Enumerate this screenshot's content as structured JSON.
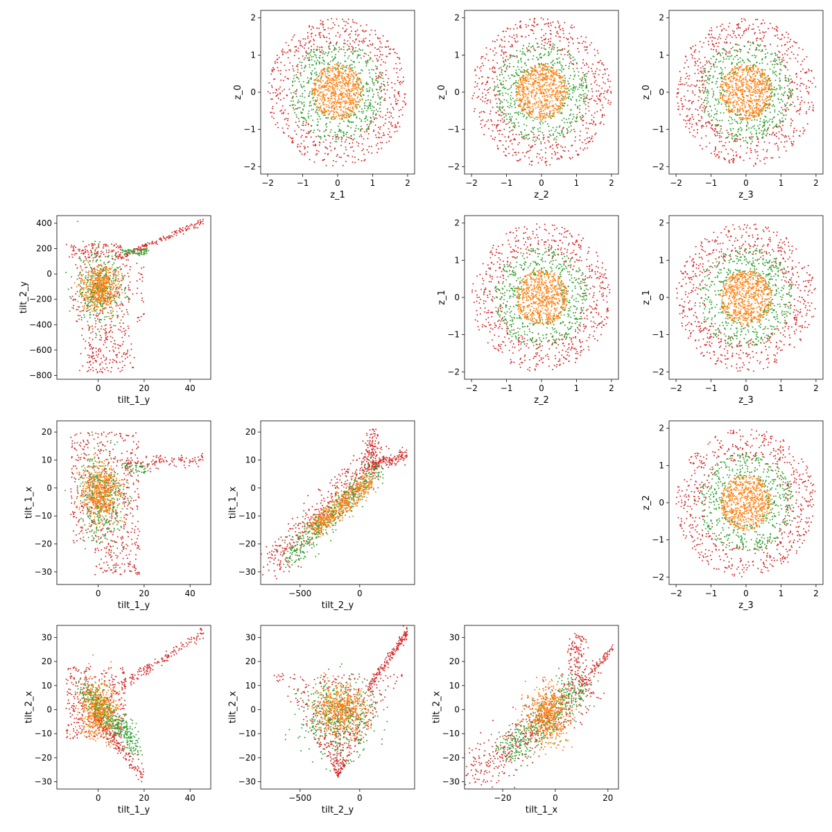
{
  "figure": {
    "point_colors": {
      "inner": "#1f77b4",
      "middle": "#ff7f0e",
      "outer_green": "#2ca02c",
      "outer_red": "#d62728"
    }
  },
  "chart_data": [
    {
      "type": "scatter",
      "row": 0,
      "col": 1,
      "xlabel": "z_1",
      "ylabel": "z_0",
      "xlim": [
        -2.2,
        2.2
      ],
      "ylim": [
        -2.2,
        2.2
      ],
      "xticks": [
        -2,
        -1,
        0,
        1,
        2
      ],
      "yticks": [
        -2,
        -1,
        0,
        1,
        2
      ],
      "shape": "disc",
      "series": [
        {
          "color": "#d62728",
          "count": 650,
          "r_min": 1.15,
          "r_max": 2.0
        },
        {
          "color": "#2ca02c",
          "count": 520,
          "r_min": 0.6,
          "r_max": 1.35
        },
        {
          "color": "#ff7f0e",
          "count": 650,
          "r_min": 0.0,
          "r_max": 0.75
        }
      ]
    },
    {
      "type": "scatter",
      "row": 0,
      "col": 2,
      "xlabel": "z_2",
      "ylabel": "z_0",
      "xlim": [
        -2.2,
        2.2
      ],
      "ylim": [
        -2.2,
        2.2
      ],
      "xticks": [
        -2,
        -1,
        0,
        1,
        2
      ],
      "yticks": [
        -2,
        -1,
        0,
        1,
        2
      ],
      "shape": "disc",
      "series": [
        {
          "color": "#d62728",
          "count": 650,
          "r_min": 1.15,
          "r_max": 2.0
        },
        {
          "color": "#2ca02c",
          "count": 520,
          "r_min": 0.6,
          "r_max": 1.35
        },
        {
          "color": "#ff7f0e",
          "count": 650,
          "r_min": 0.0,
          "r_max": 0.75
        }
      ]
    },
    {
      "type": "scatter",
      "row": 0,
      "col": 3,
      "xlabel": "z_3",
      "ylabel": "z_0",
      "xlim": [
        -2.2,
        2.2
      ],
      "ylim": [
        -2.2,
        2.2
      ],
      "xticks": [
        -2,
        -1,
        0,
        1,
        2
      ],
      "yticks": [
        -2,
        -1,
        0,
        1,
        2
      ],
      "shape": "disc",
      "series": [
        {
          "color": "#d62728",
          "count": 650,
          "r_min": 1.15,
          "r_max": 2.0
        },
        {
          "color": "#2ca02c",
          "count": 520,
          "r_min": 0.6,
          "r_max": 1.35
        },
        {
          "color": "#ff7f0e",
          "count": 650,
          "r_min": 0.0,
          "r_max": 0.75
        }
      ]
    },
    {
      "type": "scatter",
      "row": 1,
      "col": 0,
      "xlabel": "tilt_1_y",
      "ylabel": "tilt_2_y",
      "xlim": [
        -18,
        49
      ],
      "ylim": [
        -830,
        460
      ],
      "xticks": [
        0,
        20,
        40
      ],
      "yticks": [
        -800,
        -600,
        -400,
        -200,
        0,
        200,
        400
      ],
      "shape": "tilt21",
      "series": [
        {
          "color": "#d62728",
          "count": 650
        },
        {
          "color": "#2ca02c",
          "count": 450
        },
        {
          "color": "#ff7f0e",
          "count": 500
        }
      ]
    },
    {
      "type": "scatter",
      "row": 1,
      "col": 2,
      "xlabel": "z_2",
      "ylabel": "z_1",
      "xlim": [
        -2.2,
        2.2
      ],
      "ylim": [
        -2.2,
        2.2
      ],
      "xticks": [
        -2,
        -1,
        0,
        1,
        2
      ],
      "yticks": [
        -2,
        -1,
        0,
        1,
        2
      ],
      "shape": "disc",
      "series": [
        {
          "color": "#d62728",
          "count": 650,
          "r_min": 1.15,
          "r_max": 2.0
        },
        {
          "color": "#2ca02c",
          "count": 520,
          "r_min": 0.6,
          "r_max": 1.35
        },
        {
          "color": "#ff7f0e",
          "count": 650,
          "r_min": 0.0,
          "r_max": 0.75
        }
      ]
    },
    {
      "type": "scatter",
      "row": 1,
      "col": 3,
      "xlabel": "z_3",
      "ylabel": "z_1",
      "xlim": [
        -2.2,
        2.2
      ],
      "ylim": [
        -2.2,
        2.2
      ],
      "xticks": [
        -2,
        -1,
        0,
        1,
        2
      ],
      "yticks": [
        -2,
        -1,
        0,
        1,
        2
      ],
      "shape": "disc",
      "series": [
        {
          "color": "#d62728",
          "count": 650,
          "r_min": 1.15,
          "r_max": 2.0
        },
        {
          "color": "#2ca02c",
          "count": 520,
          "r_min": 0.6,
          "r_max": 1.35
        },
        {
          "color": "#ff7f0e",
          "count": 650,
          "r_min": 0.0,
          "r_max": 0.75
        }
      ]
    },
    {
      "type": "scatter",
      "row": 2,
      "col": 0,
      "xlabel": "tilt_1_y",
      "ylabel": "tilt_1_x",
      "xlim": [
        -18,
        49
      ],
      "ylim": [
        -34.5,
        24
      ],
      "xticks": [
        0,
        20,
        40
      ],
      "yticks": [
        -30,
        -20,
        -10,
        0,
        10,
        20
      ],
      "shape": "tilt11",
      "series": [
        {
          "color": "#d62728",
          "count": 650
        },
        {
          "color": "#2ca02c",
          "count": 450
        },
        {
          "color": "#ff7f0e",
          "count": 500
        }
      ]
    },
    {
      "type": "scatter",
      "row": 2,
      "col": 1,
      "xlabel": "tilt_2_y",
      "ylabel": "tilt_1_x",
      "xlim": [
        -830,
        460
      ],
      "ylim": [
        -34.5,
        24
      ],
      "xticks": [
        -500,
        0
      ],
      "yticks": [
        -30,
        -20,
        -10,
        0,
        10,
        20
      ],
      "shape": "tilt_diag",
      "series": [
        {
          "color": "#d62728",
          "count": 650
        },
        {
          "color": "#2ca02c",
          "count": 450
        },
        {
          "color": "#ff7f0e",
          "count": 500
        }
      ]
    },
    {
      "type": "scatter",
      "row": 2,
      "col": 3,
      "xlabel": "z_3",
      "ylabel": "z_2",
      "xlim": [
        -2.2,
        2.2
      ],
      "ylim": [
        -2.2,
        2.2
      ],
      "xticks": [
        -2,
        -1,
        0,
        1,
        2
      ],
      "yticks": [
        -2,
        -1,
        0,
        1,
        2
      ],
      "shape": "disc",
      "series": [
        {
          "color": "#d62728",
          "count": 650,
          "r_min": 1.15,
          "r_max": 2.0
        },
        {
          "color": "#2ca02c",
          "count": 520,
          "r_min": 0.6,
          "r_max": 1.35
        },
        {
          "color": "#ff7f0e",
          "count": 650,
          "r_min": 0.0,
          "r_max": 0.75
        }
      ]
    },
    {
      "type": "scatter",
      "row": 3,
      "col": 0,
      "xlabel": "tilt_1_y",
      "ylabel": "tilt_2_x",
      "xlim": [
        -18,
        49
      ],
      "ylim": [
        -33,
        35
      ],
      "xticks": [
        0,
        20,
        40
      ],
      "yticks": [
        -30,
        -20,
        -10,
        0,
        10,
        20,
        30
      ],
      "shape": "tilt_fan",
      "series": [
        {
          "color": "#d62728",
          "count": 650
        },
        {
          "color": "#2ca02c",
          "count": 450
        },
        {
          "color": "#ff7f0e",
          "count": 500
        }
      ]
    },
    {
      "type": "scatter",
      "row": 3,
      "col": 1,
      "xlabel": "tilt_2_y",
      "ylabel": "tilt_2_x",
      "xlim": [
        -830,
        460
      ],
      "ylim": [
        -33,
        35
      ],
      "xticks": [
        -500,
        0
      ],
      "yticks": [
        -30,
        -20,
        -10,
        0,
        10,
        20,
        30
      ],
      "shape": "tilt_tri",
      "series": [
        {
          "color": "#d62728",
          "count": 650
        },
        {
          "color": "#2ca02c",
          "count": 450
        },
        {
          "color": "#ff7f0e",
          "count": 500
        }
      ]
    },
    {
      "type": "scatter",
      "row": 3,
      "col": 2,
      "xlabel": "tilt_1_x",
      "ylabel": "tilt_2_x",
      "xlim": [
        -34.5,
        24
      ],
      "ylim": [
        -33,
        35
      ],
      "xticks": [
        -20,
        0,
        20
      ],
      "yticks": [
        -30,
        -20,
        -10,
        0,
        10,
        20,
        30
      ],
      "shape": "tilt_band",
      "series": [
        {
          "color": "#d62728",
          "count": 650
        },
        {
          "color": "#2ca02c",
          "count": 450
        },
        {
          "color": "#ff7f0e",
          "count": 500
        }
      ]
    }
  ]
}
